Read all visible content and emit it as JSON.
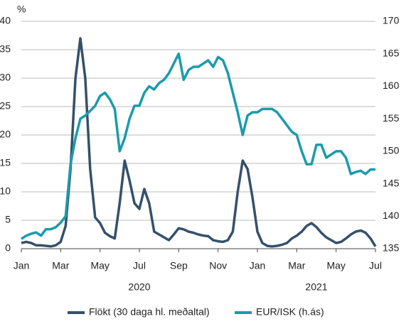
{
  "chart_data": {
    "type": "line",
    "y_unit": "%",
    "x": [
      0,
      0.25,
      0.5,
      0.75,
      1,
      1.25,
      1.5,
      1.75,
      2,
      2.25,
      2.5,
      2.75,
      3,
      3.25,
      3.5,
      3.75,
      4,
      4.25,
      4.5,
      4.75,
      5,
      5.25,
      5.5,
      5.75,
      6,
      6.25,
      6.5,
      6.75,
      7,
      7.25,
      7.5,
      7.75,
      8,
      8.25,
      8.5,
      8.75,
      9,
      9.25,
      9.5,
      9.75,
      10,
      10.25,
      10.5,
      10.75,
      11,
      11.25,
      11.5,
      11.75,
      12,
      12.25,
      12.5,
      12.75,
      13,
      13.25,
      13.5,
      13.75,
      14,
      14.25,
      14.5,
      14.75,
      15,
      15.25,
      15.5,
      15.75,
      16,
      16.25,
      16.5,
      16.75,
      17,
      17.25,
      17.5,
      17.75,
      18
    ],
    "xlim": [
      0,
      18
    ],
    "xticks": [
      {
        "value": 0,
        "label": "Jan"
      },
      {
        "value": 2,
        "label": "Mar"
      },
      {
        "value": 4,
        "label": "May"
      },
      {
        "value": 6,
        "label": "Jul"
      },
      {
        "value": 8,
        "label": "Sep"
      },
      {
        "value": 10,
        "label": "Nov"
      },
      {
        "value": 12,
        "label": "Jan"
      },
      {
        "value": 14,
        "label": "Mar"
      },
      {
        "value": 16,
        "label": "May"
      },
      {
        "value": 18,
        "label": "Jul"
      }
    ],
    "x_group_labels": [
      {
        "value": 6,
        "label": "2020"
      },
      {
        "value": 15,
        "label": "2021"
      }
    ],
    "ylim": [
      0,
      40
    ],
    "yticks": [
      0,
      5,
      10,
      15,
      20,
      25,
      30,
      35,
      40
    ],
    "y2lim": [
      135,
      170
    ],
    "y2ticks": [
      135,
      140,
      145,
      150,
      155,
      160,
      165,
      170
    ],
    "grid": true,
    "legend": "bottom",
    "series": [
      {
        "name": "Flökt (30 daga hl. meðaltal)",
        "color": "#35506b",
        "values": [
          1.0,
          1.2,
          1.0,
          0.6,
          0.6,
          0.5,
          0.4,
          0.6,
          1.2,
          4,
          14,
          30,
          37,
          30,
          14,
          5.5,
          4.5,
          2.8,
          2.2,
          1.8,
          8,
          15.5,
          12,
          8,
          7,
          10.5,
          8,
          3,
          2.5,
          2,
          1.5,
          2.5,
          3.6,
          3.4,
          3,
          2.8,
          2.5,
          2.3,
          2.2,
          1.5,
          1.3,
          1.2,
          1.5,
          3,
          10,
          15.5,
          14,
          9,
          3,
          1,
          0.5,
          0.4,
          0.5,
          0.7,
          1,
          1.8,
          2.3,
          3,
          4,
          4.5,
          3.8,
          2.8,
          2,
          1.5,
          1,
          1.2,
          1.8,
          2.5,
          3,
          3.2,
          2.8,
          1.8,
          0.4
        ]
      },
      {
        "name": "EUR/ISK (h.ás)",
        "color": "#1b9bab",
        "axis": "y2",
        "values": [
          136.5,
          137,
          137.3,
          137.5,
          137,
          138,
          138,
          138.3,
          139,
          140,
          148,
          152,
          155,
          155.5,
          156.2,
          157,
          158.5,
          159,
          158,
          156.5,
          150,
          152,
          155,
          157,
          157,
          159,
          160,
          159.5,
          160.5,
          161,
          162,
          163.5,
          165,
          161,
          162.5,
          163,
          163,
          163.5,
          164,
          163,
          164.5,
          164,
          162,
          159,
          156,
          152.5,
          155.5,
          156,
          156,
          156.5,
          156.5,
          156.5,
          156,
          155,
          154,
          153,
          152.5,
          150,
          148,
          148,
          151,
          151,
          149,
          149.5,
          150,
          150,
          149,
          146.5,
          146.8,
          147,
          146.5,
          147.2,
          147.2
        ]
      }
    ]
  }
}
